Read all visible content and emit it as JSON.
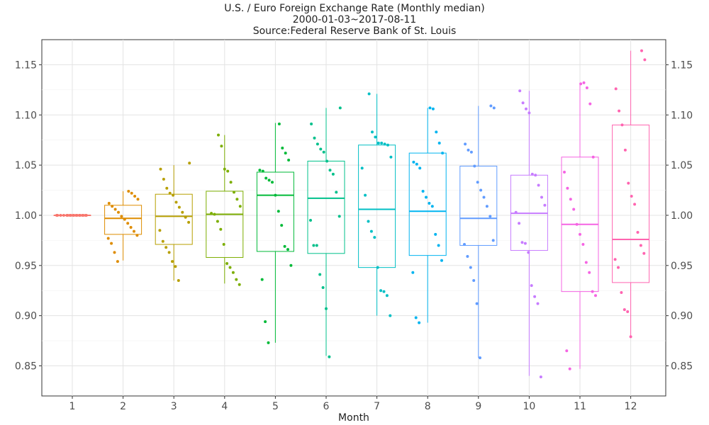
{
  "title_lines": [
    "U.S. / Euro Foreign Exchange Rate (Monthly median)",
    "2000-01-03~2017-08-11",
    "Source:Federal Reserve Bank of St. Louis"
  ],
  "chart_data": {
    "type": "box",
    "title": "U.S. / Euro Foreign Exchange Rate (Monthly median)",
    "xlabel": "Month",
    "ylabel": "",
    "ylim": [
      0.82,
      1.175
    ],
    "yticks": [
      0.85,
      0.9,
      0.95,
      1.0,
      1.05,
      1.1,
      1.15
    ],
    "ytick_labels": [
      "0.85",
      "0.90",
      "0.95",
      "1.00",
      "1.05",
      "1.10",
      "1.15"
    ],
    "grid": true,
    "legend": "none",
    "categories": [
      "1",
      "2",
      "3",
      "4",
      "5",
      "6",
      "7",
      "8",
      "9",
      "10",
      "11",
      "12"
    ],
    "colors": [
      "#F8766D",
      "#DE8C00",
      "#B79F00",
      "#7CAE00",
      "#00BA38",
      "#00C08B",
      "#00BFC4",
      "#00B4F0",
      "#619CFF",
      "#C77CFF",
      "#F564E3",
      "#FF64B0"
    ],
    "boxes": [
      {
        "month": "1",
        "min": 1.0,
        "q1": 1.0,
        "median": 1.0,
        "q3": 1.0,
        "max": 1.0,
        "points": [
          1.0,
          1.0,
          1.0,
          1.0,
          1.0,
          1.0,
          1.0,
          1.0,
          1.0,
          1.0,
          1.0,
          1.0,
          1.0,
          1.0,
          1.0,
          1.0,
          1.0,
          1.0
        ]
      },
      {
        "month": "2",
        "min": 0.955,
        "q1": 0.981,
        "median": 0.997,
        "q3": 1.01,
        "max": 1.024,
        "points": [
          0.954,
          0.963,
          0.972,
          0.977,
          0.98,
          0.984,
          0.988,
          0.992,
          0.996,
          0.999,
          1.003,
          1.006,
          1.009,
          1.012,
          1.016,
          1.019,
          1.022,
          1.024
        ]
      },
      {
        "month": "3",
        "min": 0.935,
        "q1": 0.971,
        "median": 0.999,
        "q3": 1.021,
        "max": 1.05,
        "points": [
          0.935,
          0.949,
          0.954,
          0.963,
          0.968,
          0.974,
          0.985,
          0.993,
          0.998,
          1.003,
          1.008,
          1.013,
          1.02,
          1.022,
          1.027,
          1.036,
          1.046,
          1.052
        ]
      },
      {
        "month": "4",
        "min": 0.932,
        "q1": 0.958,
        "median": 1.001,
        "q3": 1.024,
        "max": 1.08,
        "points": [
          0.931,
          0.936,
          0.943,
          0.948,
          0.952,
          0.971,
          0.986,
          0.994,
          1.001,
          1.002,
          1.009,
          1.016,
          1.023,
          1.033,
          1.044,
          1.046,
          1.069,
          1.08
        ]
      },
      {
        "month": "5",
        "min": 0.873,
        "q1": 0.964,
        "median": 1.02,
        "q3": 1.043,
        "max": 1.092,
        "points": [
          0.873,
          0.894,
          0.936,
          0.95,
          0.966,
          0.969,
          0.99,
          1.004,
          1.02,
          1.033,
          1.035,
          1.037,
          1.044,
          1.045,
          1.055,
          1.062,
          1.067,
          1.091
        ]
      },
      {
        "month": "6",
        "min": 0.86,
        "q1": 0.962,
        "median": 1.017,
        "q3": 1.054,
        "max": 1.107,
        "points": [
          0.859,
          0.907,
          0.928,
          0.941,
          0.97,
          0.97,
          0.995,
          0.999,
          1.023,
          1.041,
          1.045,
          1.054,
          1.063,
          1.066,
          1.071,
          1.077,
          1.091,
          1.107
        ]
      },
      {
        "month": "7",
        "min": 0.9,
        "q1": 0.948,
        "median": 1.006,
        "q3": 1.07,
        "max": 1.121,
        "points": [
          0.9,
          0.92,
          0.924,
          0.925,
          0.948,
          0.978,
          0.984,
          0.994,
          1.02,
          1.047,
          1.058,
          1.07,
          1.071,
          1.072,
          1.072,
          1.078,
          1.083,
          1.121
        ]
      },
      {
        "month": "8",
        "min": 0.893,
        "q1": 0.96,
        "median": 1.004,
        "q3": 1.062,
        "max": 1.107,
        "points": [
          0.893,
          0.898,
          0.943,
          0.955,
          0.97,
          0.981,
          1.009,
          1.012,
          1.018,
          1.024,
          1.047,
          1.051,
          1.053,
          1.062,
          1.072,
          1.083,
          1.106,
          1.107
        ]
      },
      {
        "month": "9",
        "min": 0.858,
        "q1": 0.97,
        "median": 0.997,
        "q3": 1.049,
        "max": 1.109,
        "points": [
          0.858,
          0.912,
          0.935,
          0.948,
          0.959,
          0.971,
          0.975,
          0.999,
          1.009,
          1.018,
          1.025,
          1.033,
          1.049,
          1.063,
          1.065,
          1.071,
          1.107,
          1.109
        ]
      },
      {
        "month": "10",
        "min": 0.84,
        "q1": 0.965,
        "median": 1.002,
        "q3": 1.04,
        "max": 1.124,
        "points": [
          0.839,
          0.912,
          0.919,
          0.93,
          0.963,
          0.972,
          0.973,
          0.992,
          1.003,
          1.01,
          1.018,
          1.03,
          1.04,
          1.041,
          1.102,
          1.106,
          1.112,
          1.124
        ]
      },
      {
        "month": "11",
        "min": 0.847,
        "q1": 0.924,
        "median": 0.991,
        "q3": 1.058,
        "max": 1.131,
        "points": [
          0.847,
          0.865,
          0.92,
          0.924,
          0.943,
          0.953,
          0.971,
          0.981,
          0.991,
          1.006,
          1.016,
          1.027,
          1.043,
          1.058,
          1.111,
          1.127,
          1.132,
          1.131
        ]
      },
      {
        "month": "12",
        "min": 0.88,
        "q1": 0.933,
        "median": 0.976,
        "q3": 1.09,
        "max": 1.164,
        "points": [
          0.879,
          0.904,
          0.906,
          0.923,
          0.948,
          0.956,
          0.962,
          0.97,
          0.983,
          1.011,
          1.019,
          1.032,
          1.065,
          1.09,
          1.104,
          1.126,
          1.155,
          1.164
        ]
      }
    ]
  }
}
